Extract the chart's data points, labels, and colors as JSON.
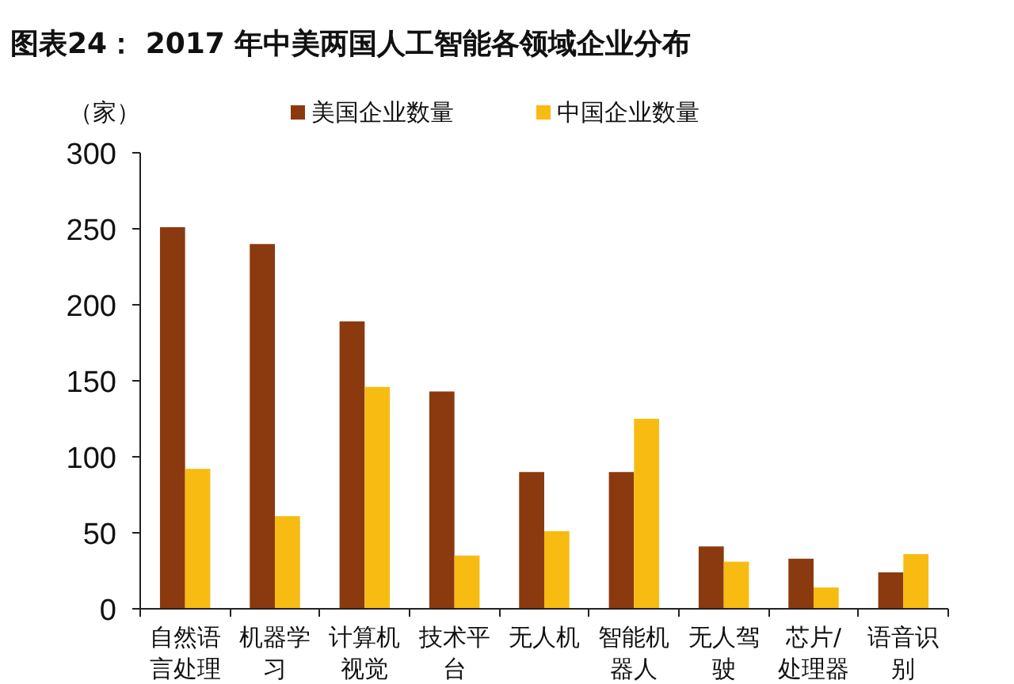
{
  "chart_data": {
    "type": "bar",
    "title": "图表24：  2017 年中美两国人工智能各领域企业分布",
    "ylabel": "（家）",
    "categories": [
      "自然语言处理",
      "机器学习",
      "计算机视觉",
      "技术平台",
      "无人机",
      "智能机器人",
      "无人驾驶",
      "芯片/处理器",
      "语音识别"
    ],
    "series": [
      {
        "name": "美国企业数量",
        "color": "#8b3a0f",
        "values": [
          251,
          240,
          189,
          143,
          90,
          90,
          41,
          33,
          24
        ]
      },
      {
        "name": "中国企业数量",
        "color": "#f8bb12",
        "values": [
          92,
          61,
          146,
          35,
          51,
          125,
          31,
          14,
          36
        ]
      }
    ],
    "ylim": [
      0,
      300
    ],
    "yticks": [
      0,
      50,
      100,
      150,
      200,
      250,
      300
    ],
    "legend": "top",
    "grid": false
  }
}
